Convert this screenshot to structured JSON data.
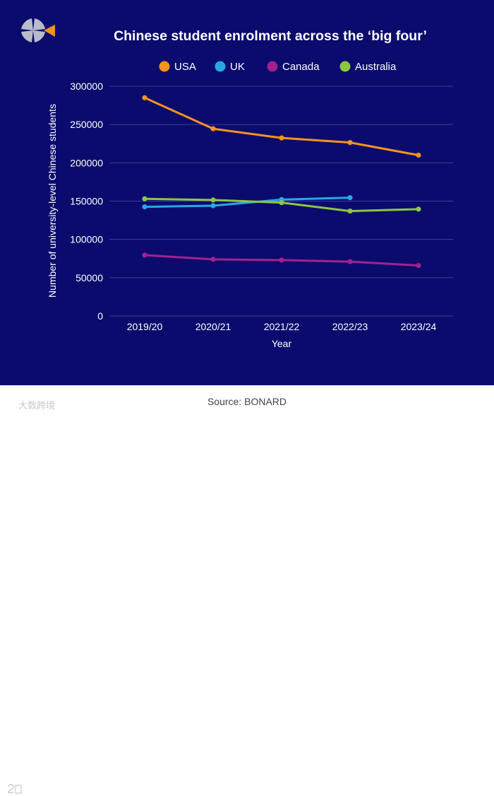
{
  "colors": {
    "background": "#0b0b6e",
    "grid": "#3c3c9a",
    "text": "#ffffff",
    "USA": "#f7931e",
    "UK": "#29a8e0",
    "Canada": "#a3218e",
    "Australia": "#8dc63f"
  },
  "logo": {
    "icon": "bonard-logo-icon"
  },
  "footer": {
    "source": "Source: BONARD",
    "watermark": "大数跨境"
  },
  "chart_data": {
    "type": "line",
    "title": "Chinese student enrolment across the ‘big four’",
    "xlabel": "Year",
    "ylabel": "Number of university-level Chinese students",
    "categories": [
      "2019/20",
      "2020/21",
      "2021/22",
      "2022/23",
      "2023/24"
    ],
    "ylim": [
      0,
      300000
    ],
    "yticks": [
      0,
      50000,
      100000,
      150000,
      200000,
      250000,
      300000
    ],
    "ytick_labels": [
      "0",
      "50000",
      "100000",
      "150000",
      "200000",
      "250000",
      "300000"
    ],
    "grid": true,
    "legend": "top-center",
    "series": [
      {
        "name": "USA",
        "values": [
          285000,
          244500,
          232500,
          226500,
          210000
        ]
      },
      {
        "name": "UK",
        "values": [
          142500,
          144000,
          152000,
          154500,
          null
        ]
      },
      {
        "name": "Canada",
        "values": [
          79500,
          74000,
          73000,
          71000,
          66000
        ]
      },
      {
        "name": "Australia",
        "values": [
          153000,
          151500,
          148000,
          137000,
          139500
        ]
      }
    ]
  }
}
